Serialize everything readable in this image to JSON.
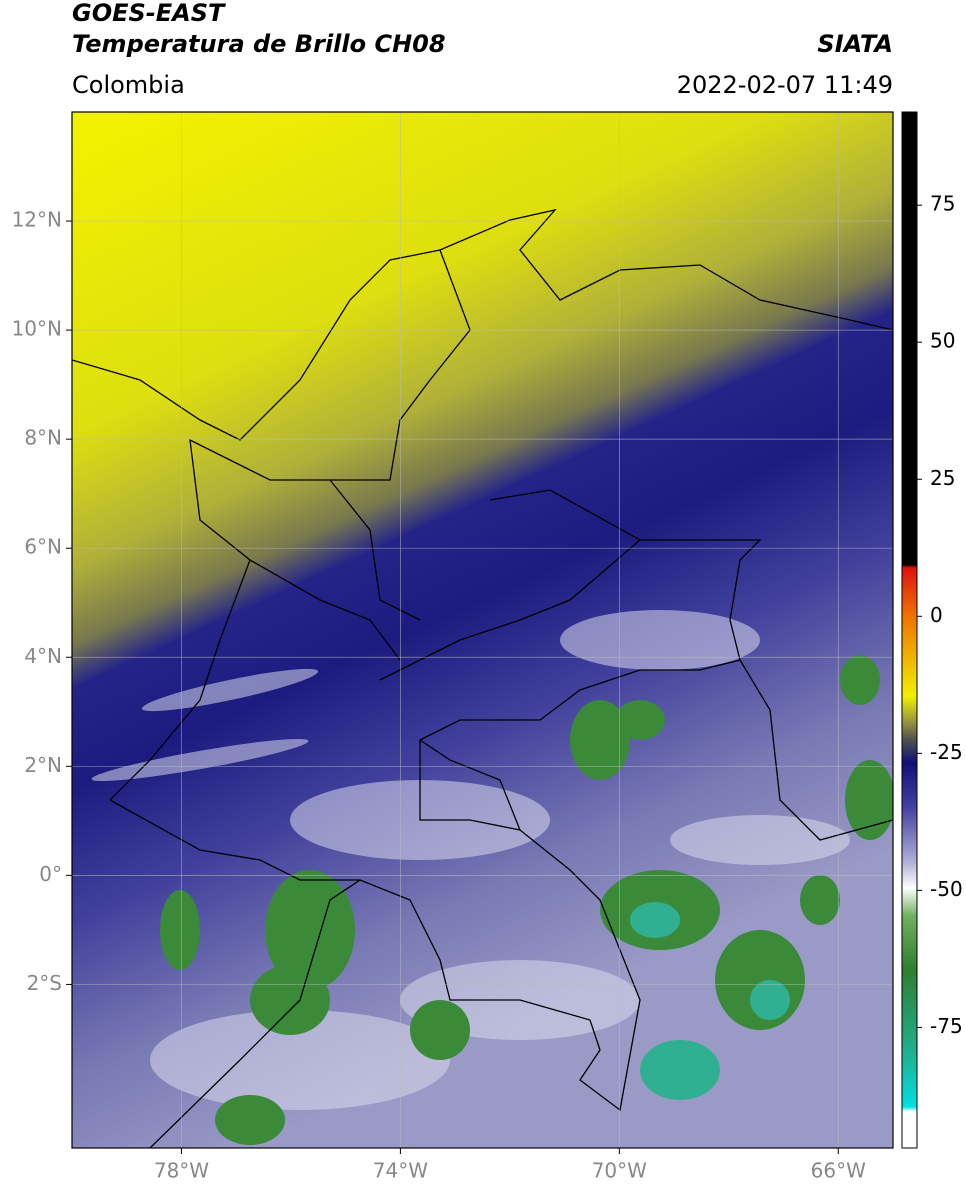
{
  "header": {
    "title": "GOES-EAST",
    "subtitle": "Temperatura de Brillo CH08",
    "source": "SIATA",
    "region": "Colombia",
    "datetime": "2022-02-07 11:49"
  },
  "map": {
    "lonlim": [
      -80,
      -65
    ],
    "latlim": [
      -5,
      14
    ],
    "lon_ticks": [
      {
        "value": -78,
        "label": "78°W"
      },
      {
        "value": -74,
        "label": "74°W"
      },
      {
        "value": -70,
        "label": "70°W"
      },
      {
        "value": -66,
        "label": "66°W"
      }
    ],
    "lat_ticks": [
      {
        "value": 12,
        "label": "12°N"
      },
      {
        "value": 10,
        "label": "10°N"
      },
      {
        "value": 8,
        "label": "8°N"
      },
      {
        "value": 6,
        "label": "6°N"
      },
      {
        "value": 4,
        "label": "4°N"
      },
      {
        "value": 2,
        "label": "2°N"
      },
      {
        "value": 0,
        "label": "0°"
      },
      {
        "value": -2,
        "label": "2°S"
      }
    ],
    "colorbar": {
      "lim": [
        -97,
        92
      ],
      "ticks": [
        75,
        50,
        25,
        0,
        -25,
        -50,
        -75
      ]
    }
  }
}
